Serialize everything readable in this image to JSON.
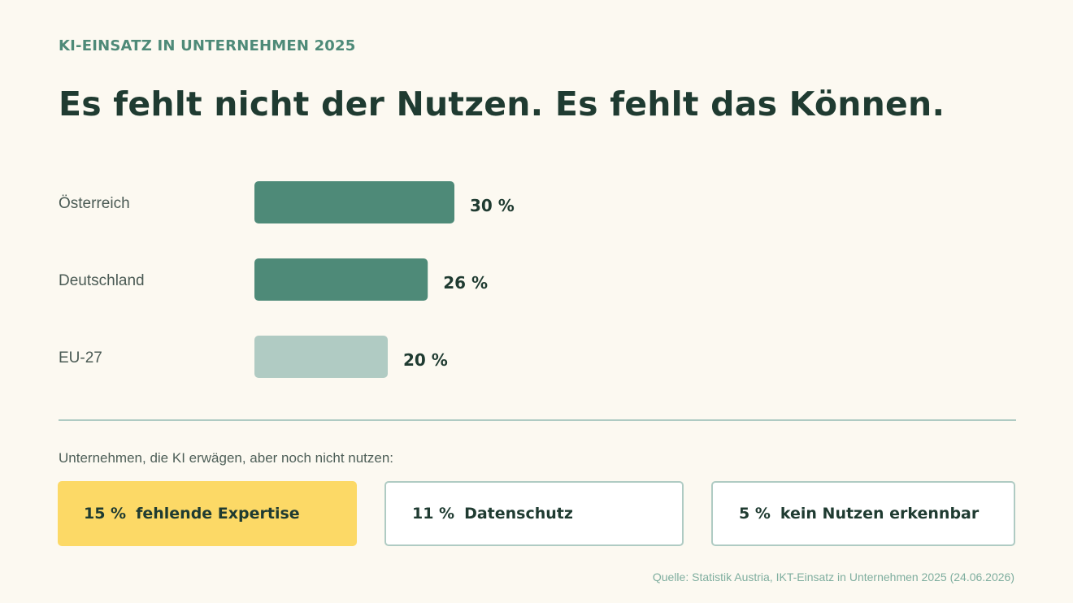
{
  "kicker": "KI-EINSATZ IN UNTERNEHMEN 2025",
  "headline": "Es fehlt nicht der Nutzen. Es fehlt das Können.",
  "chart_data": {
    "type": "bar",
    "orientation": "horizontal",
    "categories": [
      "Österreich",
      "Deutschland",
      "EU-27"
    ],
    "values": [
      30,
      26,
      20
    ],
    "value_labels": [
      "30 %",
      "26 %",
      "20 %"
    ],
    "unit": "%",
    "bar_colors": [
      "#4e8a78",
      "#4e8a78",
      "#b0cbc3"
    ],
    "xlim": [
      0,
      100
    ],
    "grid": false
  },
  "subnote": "Unternehmen, die KI erwägen, aber noch nicht nutzen:",
  "reasons": [
    {
      "pct": "15 %",
      "label": "fehlende Expertise",
      "color": "#fcd966"
    },
    {
      "pct": "11 %",
      "label": "Datenschutz",
      "color": "#ffffff"
    },
    {
      "pct": "5 %",
      "label": "kein Nutzen erkennbar",
      "color": "#ffffff"
    }
  ],
  "source": "Quelle: Statistik Austria, IKT-Einsatz in Unternehmen 2025 (24.06.2026)"
}
